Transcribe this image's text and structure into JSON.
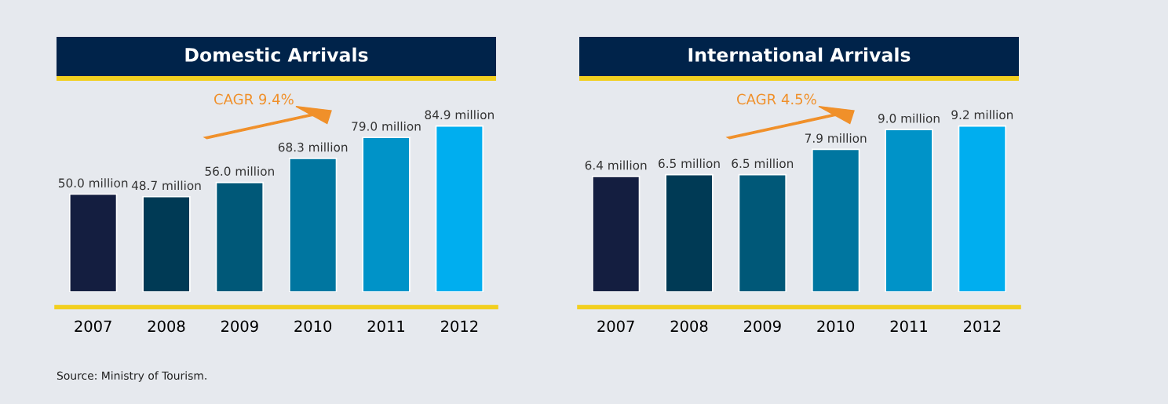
{
  "chart_data": [
    {
      "type": "bar",
      "title": "Domestic Arrivals",
      "categories": [
        "2007",
        "2008",
        "2009",
        "2010",
        "2011",
        "2012"
      ],
      "values": [
        50.0,
        48.7,
        56.0,
        68.3,
        79.0,
        84.9
      ],
      "colors": [
        "#141e40",
        "#003a55",
        "#005878",
        "#0076a0",
        "#0093c8",
        "#00aeef"
      ],
      "value_labels": [
        "50.0 million",
        "48.7 million",
        "56.0 million",
        "68.3 million",
        "79.0 million",
        "84.9 million"
      ],
      "tick_labels": "x",
      "grid": false,
      "annotations": [
        "CAGR 9.4%",
        "Source: Ministry of Tourism."
      ]
    },
    {
      "type": "bar",
      "title": "International Arrivals",
      "categories": [
        "2007",
        "2008",
        "2009",
        "2010",
        "2011",
        "2012"
      ],
      "values": [
        6.4,
        6.5,
        6.5,
        7.9,
        9.0,
        9.2
      ],
      "colors": [
        "#141e40",
        "#003a55",
        "#005878",
        "#0076a0",
        "#0093c8",
        "#00aeef"
      ],
      "value_labels": [
        "6.4 million",
        "6.5 million",
        "6.5 million",
        "7.9 million",
        "9.0 million",
        "9.2 million"
      ],
      "tick_labels": "x",
      "grid": false,
      "annotations": [
        "CAGR 4.5%"
      ]
    }
  ]
}
